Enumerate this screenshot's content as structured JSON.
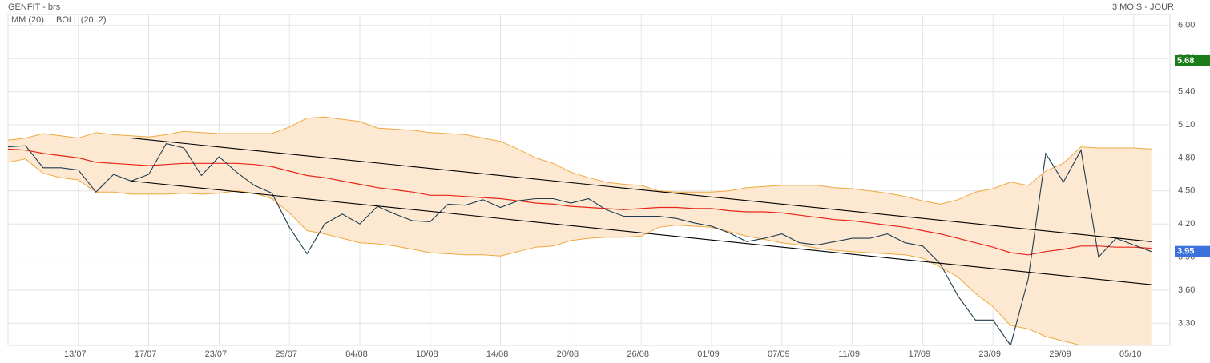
{
  "chart_data": {
    "type": "line",
    "title": "GENFIT - brs",
    "subtitle": "3 MOIS - JOUR",
    "categories": [
      null,
      null,
      null,
      null,
      "13/07",
      null,
      null,
      null,
      "17/07",
      null,
      null,
      null,
      "23/07",
      null,
      null,
      null,
      "29/07",
      null,
      null,
      null,
      "04/08",
      null,
      null,
      null,
      "10/08",
      null,
      null,
      null,
      "14/08",
      null,
      null,
      null,
      "20/08",
      null,
      null,
      null,
      "26/08",
      null,
      null,
      null,
      "01/09",
      null,
      null,
      null,
      "07/09",
      null,
      null,
      null,
      "11/09",
      null,
      null,
      null,
      "17/09",
      null,
      null,
      null,
      "23/09",
      null,
      null,
      null,
      "29/09",
      null,
      null,
      null,
      "05/10",
      null
    ],
    "values": [
      4.9,
      4.91,
      4.71,
      4.71,
      4.69,
      4.49,
      4.65,
      4.59,
      4.65,
      4.93,
      4.89,
      4.64,
      4.81,
      4.67,
      4.55,
      4.48,
      4.17,
      3.93,
      4.2,
      4.29,
      4.2,
      4.36,
      4.29,
      4.23,
      4.22,
      4.38,
      4.37,
      4.42,
      4.35,
      4.41,
      4.43,
      4.43,
      4.39,
      4.43,
      4.33,
      4.27,
      4.27,
      4.27,
      4.25,
      4.21,
      4.18,
      4.12,
      4.04,
      4.07,
      4.11,
      4.03,
      4.01,
      4.04,
      4.07,
      4.07,
      4.11,
      4.03,
      4.0,
      3.84,
      3.55,
      3.33,
      3.33,
      3.1,
      3.7,
      4.84,
      4.58,
      4.87,
      3.9,
      4.07,
      4.01,
      3.95
    ],
    "color": "#1f3b4d",
    "series": [
      {
        "name": "MM (20)",
        "color": "#e8261c",
        "values": [
          4.88,
          4.87,
          4.84,
          4.82,
          4.8,
          4.76,
          4.75,
          4.74,
          4.73,
          4.74,
          4.75,
          4.75,
          4.75,
          4.75,
          4.74,
          4.72,
          4.68,
          4.64,
          4.62,
          4.59,
          4.56,
          4.53,
          4.51,
          4.49,
          4.46,
          4.46,
          4.45,
          4.44,
          4.43,
          4.41,
          4.39,
          4.38,
          4.36,
          4.35,
          4.34,
          4.33,
          4.34,
          4.35,
          4.35,
          4.34,
          4.34,
          4.32,
          4.31,
          4.31,
          4.3,
          4.28,
          4.26,
          4.24,
          4.23,
          4.21,
          4.19,
          4.17,
          4.14,
          4.11,
          4.07,
          4.03,
          3.99,
          3.94,
          3.92,
          3.95,
          3.97,
          4.0,
          4.0,
          3.99,
          3.99,
          3.98
        ]
      },
      {
        "name": "BOLL (20, 2)",
        "color": "#f0a840",
        "fill": "#fde9d2",
        "upper": [
          4.96,
          4.98,
          5.02,
          5.0,
          4.98,
          5.03,
          5.01,
          5.0,
          4.99,
          5.01,
          5.04,
          5.03,
          5.02,
          5.02,
          5.02,
          5.02,
          5.08,
          5.16,
          5.17,
          5.15,
          5.13,
          5.07,
          5.06,
          5.05,
          5.03,
          5.02,
          5.01,
          4.98,
          4.95,
          4.88,
          4.8,
          4.75,
          4.67,
          4.62,
          4.58,
          4.56,
          4.55,
          4.5,
          4.49,
          4.49,
          4.49,
          4.5,
          4.53,
          4.54,
          4.55,
          4.55,
          4.55,
          4.53,
          4.52,
          4.5,
          4.48,
          4.45,
          4.41,
          4.38,
          4.42,
          4.49,
          4.52,
          4.58,
          4.55,
          4.68,
          4.75,
          4.9,
          4.89,
          4.89,
          4.89,
          4.88
        ],
        "lower": [
          4.76,
          4.79,
          4.66,
          4.62,
          4.6,
          4.49,
          4.49,
          4.47,
          4.47,
          4.47,
          4.48,
          4.47,
          4.48,
          4.5,
          4.48,
          4.43,
          4.3,
          4.14,
          4.11,
          4.07,
          4.03,
          4.02,
          4.0,
          3.97,
          3.94,
          3.93,
          3.92,
          3.92,
          3.91,
          3.95,
          3.99,
          4.0,
          4.05,
          4.07,
          4.08,
          4.08,
          4.09,
          4.17,
          4.19,
          4.18,
          4.17,
          4.13,
          4.09,
          4.06,
          4.03,
          4.01,
          3.98,
          3.96,
          3.95,
          3.94,
          3.93,
          3.92,
          3.89,
          3.81,
          3.72,
          3.57,
          3.45,
          3.28,
          3.25,
          3.18,
          3.14,
          3.1,
          3.1,
          3.1,
          3.1,
          3.1
        ]
      }
    ],
    "trendlines": [
      {
        "from": {
          "index": 7,
          "value": 4.98
        },
        "to": {
          "index": 65,
          "value": 4.04
        }
      },
      {
        "from": {
          "index": 7,
          "value": 4.59
        },
        "to": {
          "index": 65,
          "value": 3.65
        }
      }
    ],
    "price_markers": [
      {
        "value": 5.68,
        "color": "#1a7d1a"
      },
      {
        "value": 3.95,
        "color": "#3a72dc"
      }
    ],
    "ylim": [
      3.1,
      6.1
    ],
    "yticks": [
      {
        "value": 3.3,
        "label": "3.30"
      },
      {
        "value": 3.6,
        "label": "3.60"
      },
      {
        "value": 3.9,
        "label": "3.90"
      },
      {
        "value": 4.2,
        "label": "4.20"
      },
      {
        "value": 4.5,
        "label": "4.50"
      },
      {
        "value": 4.8,
        "label": "4.80"
      },
      {
        "value": 5.1,
        "label": "5.10"
      },
      {
        "value": 5.4,
        "label": "5.40"
      },
      {
        "value": 5.7,
        "label": "5.70"
      },
      {
        "value": 6,
        "label": "6.00"
      }
    ],
    "grid": true
  }
}
